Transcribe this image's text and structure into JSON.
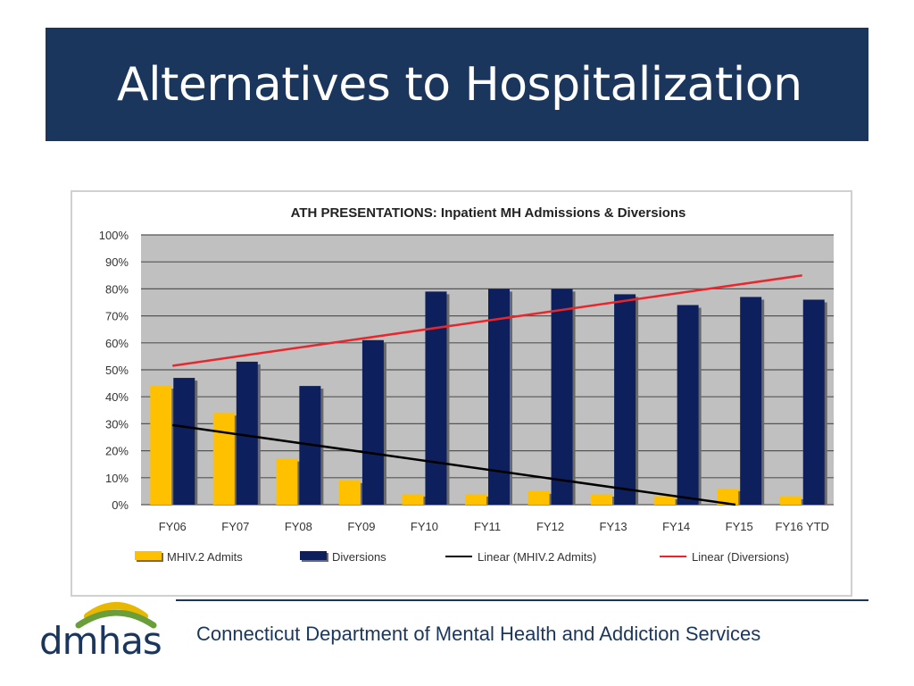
{
  "slide": {
    "title": "Alternatives to Hospitalization",
    "footer": "Connecticut Department of Mental Health and Addiction Services",
    "logo_text": "dmhas",
    "colors": {
      "header_bg": "#1b365d",
      "footer_text": "#1b365d",
      "logo_green": "#6a9e3a",
      "logo_gold": "#e8b800"
    }
  },
  "chart_data": {
    "type": "bar",
    "title": "ATH PRESENTATIONS: Inpatient MH Admissions & Diversions",
    "categories": [
      "FY06",
      "FY07",
      "FY08",
      "FY09",
      "FY10",
      "FY11",
      "FY12",
      "FY13",
      "FY14",
      "FY15",
      "FY16 YTD"
    ],
    "series": [
      {
        "name": "MHIV.2 Admits",
        "values": [
          44,
          34,
          17,
          9,
          4,
          4,
          5,
          4,
          3,
          6,
          3
        ],
        "color": "#ffc000"
      },
      {
        "name": "Diversions",
        "values": [
          47,
          53,
          44,
          61,
          79,
          80,
          80,
          78,
          74,
          77,
          76
        ],
        "color": "#0d1f5c"
      }
    ],
    "trendlines": [
      {
        "name": "Linear (MHIV.2 Admits)",
        "of": "MHIV.2 Admits",
        "start": 29.5,
        "end": -3.5,
        "color": "#000000"
      },
      {
        "name": "Linear (Diversions)",
        "of": "Diversions",
        "start": 51.5,
        "end": 85.0,
        "color": "#e8262b"
      }
    ],
    "ylim": [
      0,
      100
    ],
    "yticks": [
      "0%",
      "10%",
      "20%",
      "30%",
      "40%",
      "50%",
      "60%",
      "70%",
      "80%",
      "90%",
      "100%"
    ],
    "xlabel": "",
    "ylabel": "",
    "grid": true,
    "legend": "bottom",
    "colors": {
      "plot_bg": "#c0c0c0",
      "grid": "#555555"
    }
  }
}
